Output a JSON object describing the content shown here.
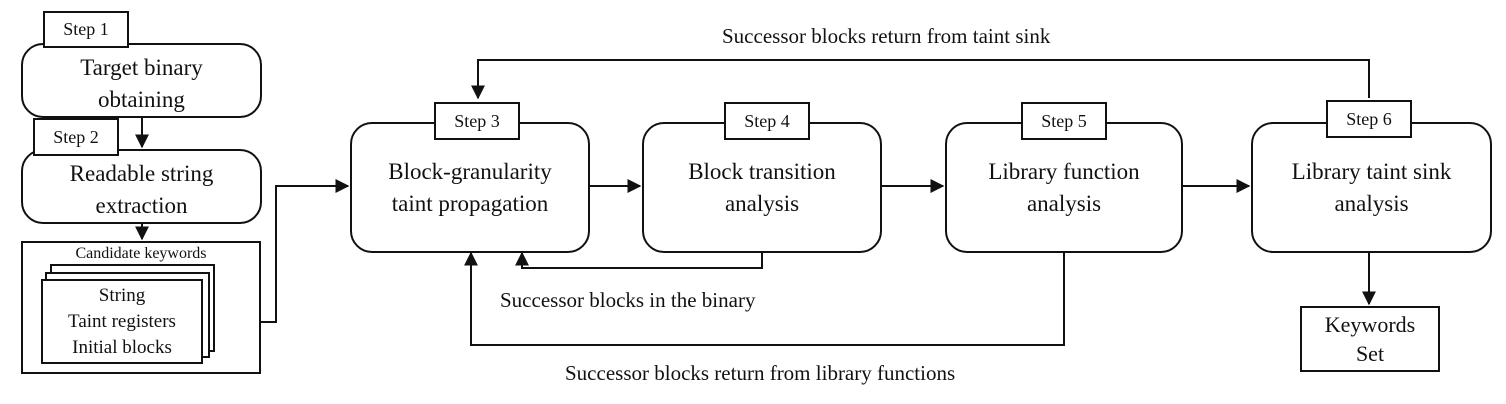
{
  "steps": {
    "s1": "Step 1",
    "s2": "Step 2",
    "s3": "Step 3",
    "s4": "Step 4",
    "s5": "Step 5",
    "s6": "Step 6"
  },
  "boxes": {
    "target_binary": "Target binary\nobtaining",
    "string_extraction": "Readable string\nextraction",
    "block_granularity": "Block-granularity\ntaint propagation",
    "block_transition": "Block transition\nanalysis",
    "library_function": "Library function\nanalysis",
    "library_taint_sink": "Library taint sink\nanalysis",
    "keywords_set": "Keywords\nSet"
  },
  "candidates": {
    "title": "Candidate keywords",
    "items": "String\nTaint registers\nInitial blocks"
  },
  "labels": {
    "return_taint_sink": "Successor blocks return from taint sink",
    "in_binary": "Successor blocks in the binary",
    "return_library": "Successor blocks return from library functions"
  }
}
